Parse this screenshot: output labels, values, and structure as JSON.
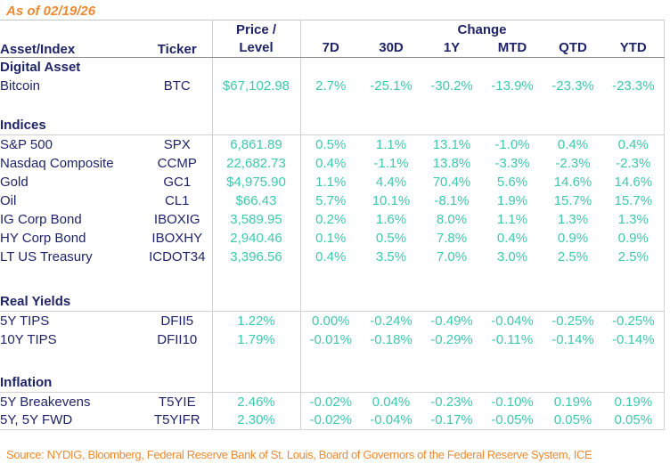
{
  "as_of": "As of 02/19/26",
  "table": {
    "headers": {
      "asset": "Asset/Index",
      "ticker": "Ticker",
      "price_line1": "Price /",
      "price_line2": "Level",
      "change_group": "Change",
      "periods": [
        "7D",
        "30D",
        "1Y",
        "MTD",
        "QTD",
        "YTD"
      ]
    },
    "sections": [
      {
        "title": "Digital Asset",
        "divider": false,
        "rows": [
          {
            "name": "Bitcoin",
            "ticker": "BTC",
            "price": "$67,102.98",
            "changes": [
              "2.7%",
              "-25.1%",
              "-30.2%",
              "-13.9%",
              "-23.3%",
              "-23.3%"
            ]
          }
        ]
      },
      {
        "title": "Indices",
        "divider": true,
        "rows": [
          {
            "name": "S&P 500",
            "ticker": "SPX",
            "price": "6,861.89",
            "changes": [
              "0.5%",
              "1.1%",
              "13.1%",
              "-1.0%",
              "0.4%",
              "0.4%"
            ]
          },
          {
            "name": "Nasdaq Composite",
            "ticker": "CCMP",
            "price": "22,682.73",
            "changes": [
              "0.4%",
              "-1.1%",
              "13.8%",
              "-3.3%",
              "-2.3%",
              "-2.3%"
            ]
          },
          {
            "name": "Gold",
            "ticker": "GC1",
            "price": "$4,975.90",
            "changes": [
              "1.1%",
              "4.4%",
              "70.4%",
              "5.6%",
              "14.6%",
              "14.6%"
            ]
          },
          {
            "name": "Oil",
            "ticker": "CL1",
            "price": "$66.43",
            "changes": [
              "5.7%",
              "10.1%",
              "-8.1%",
              "1.9%",
              "15.7%",
              "15.7%"
            ]
          },
          {
            "name": "IG Corp Bond",
            "ticker": "IBOXIG",
            "price": "3,589.95",
            "changes": [
              "0.2%",
              "1.6%",
              "8.0%",
              "1.1%",
              "1.3%",
              "1.3%"
            ]
          },
          {
            "name": "HY Corp Bond",
            "ticker": "IBOXHY",
            "price": "2,940.46",
            "changes": [
              "0.1%",
              "0.5%",
              "7.8%",
              "0.4%",
              "0.9%",
              "0.9%"
            ]
          },
          {
            "name": "LT US Treasury",
            "ticker": "ICDOT34",
            "price": "3,396.56",
            "changes": [
              "0.4%",
              "3.5%",
              "7.0%",
              "3.0%",
              "2.5%",
              "2.5%"
            ]
          }
        ]
      },
      {
        "title": "Real Yields",
        "divider": true,
        "rows": [
          {
            "name": "5Y TIPS",
            "ticker": "DFII5",
            "price": "1.22%",
            "changes": [
              "0.00%",
              "-0.24%",
              "-0.49%",
              "-0.04%",
              "-0.25%",
              "-0.25%"
            ]
          },
          {
            "name": "10Y TIPS",
            "ticker": "DFII10",
            "price": "1.79%",
            "changes": [
              "-0.01%",
              "-0.18%",
              "-0.29%",
              "-0.11%",
              "-0.14%",
              "-0.14%"
            ]
          }
        ]
      },
      {
        "title": "Inflation",
        "divider": true,
        "rows": [
          {
            "name": "5Y Breakevens",
            "ticker": "T5YIE",
            "price": "2.46%",
            "changes": [
              "-0.02%",
              "0.04%",
              "-0.23%",
              "-0.10%",
              "0.19%",
              "0.19%"
            ]
          },
          {
            "name": "5Y, 5Y FWD",
            "ticker": "T5YIFR",
            "price": "2.30%",
            "changes": [
              "-0.02%",
              "-0.04%",
              "-0.17%",
              "-0.05%",
              "0.05%",
              "0.05%"
            ]
          }
        ]
      }
    ]
  },
  "source": "Source: NYDIG, Bloomberg, Federal Reserve Bank of St. Louis, Board of Governors of the Federal Reserve System, ICE",
  "colors": {
    "navy": "#1F2468",
    "teal": "#3EC8AF",
    "orange": "#ED8A33"
  }
}
